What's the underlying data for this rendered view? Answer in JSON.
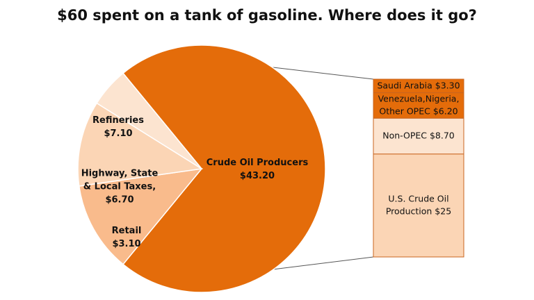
{
  "colors": {
    "dark": "#E46C0A",
    "mid": "#F9BB8C",
    "light": "#FBD5B5",
    "lighter": "#FCE4D0",
    "edge": "#ffffff",
    "bar_edge": "#C9651F"
  },
  "chart_data": [
    {
      "type": "pie",
      "title": "$60 spent on a tank of gasoline. Where does it go?",
      "slices": [
        {
          "label_lines": [
            "Crude Oil Producers",
            "$43.20"
          ],
          "value": 43.2,
          "color_key": "dark"
        },
        {
          "label_lines": [
            "Refineries",
            "$7.10"
          ],
          "value": 7.1,
          "color_key": "mid"
        },
        {
          "label_lines": [
            "Highway, State",
            "& Local Taxes,",
            "$6.70"
          ],
          "value": 6.7,
          "color_key": "light"
        },
        {
          "label_lines": [
            "Retail",
            "$3.10"
          ],
          "value": 3.1,
          "color_key": "lighter"
        }
      ]
    },
    {
      "type": "bar",
      "stacked": true,
      "breakdown_of": "Crude Oil Producers",
      "segments": [
        {
          "label_lines": [
            "Saudi Arabia $3.30"
          ],
          "value": 3.3,
          "color_key": "dark"
        },
        {
          "label_lines": [
            "Venezuela,Nigeria,",
            "Other OPEC $6.20"
          ],
          "value": 6.2,
          "color_key": "dark"
        },
        {
          "label_lines": [
            "Non-OPEC $8.70"
          ],
          "value": 8.7,
          "color_key": "lighter"
        },
        {
          "label_lines": [
            "U.S. Crude Oil",
            "Production $25"
          ],
          "value": 25,
          "color_key": "light"
        }
      ]
    }
  ]
}
